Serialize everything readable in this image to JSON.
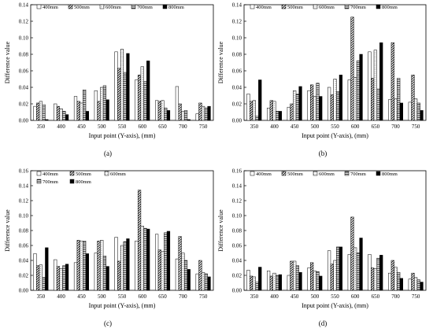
{
  "chart_data": [
    {
      "type": "bar",
      "panel_label": "(a)",
      "xlabel": "Input point (Y-axis), (mm)",
      "ylabel": "Difference value",
      "categories": [
        "350",
        "400",
        "450",
        "500",
        "550",
        "600",
        "650",
        "700",
        "750"
      ],
      "yticks": [
        "0.00",
        "0.02",
        "0.04",
        "0.06",
        "0.08",
        "0.10",
        "0.12",
        "0.14"
      ],
      "ylim": [
        0,
        0.14
      ],
      "legend": {
        "placement": "top-left"
      },
      "series": [
        {
          "name": "400mm",
          "pattern": "white",
          "values": [
            0.017,
            0.02,
            0.029,
            0.036,
            0.083,
            0.049,
            0.024,
            0.041,
            0.008
          ]
        },
        {
          "name": "500mm",
          "pattern": "diag",
          "values": [
            0.021,
            0.017,
            0.023,
            0.023,
            0.063,
            0.055,
            0.023,
            0.02,
            0.021
          ]
        },
        {
          "name": "600mm",
          "pattern": "dots",
          "values": [
            0.023,
            0.014,
            0.021,
            0.04,
            0.086,
            0.065,
            0.024,
            0.011,
            0.017
          ]
        },
        {
          "name": "700mm",
          "pattern": "horiz",
          "values": [
            0.019,
            0.011,
            0.037,
            0.042,
            0.058,
            0.047,
            0.015,
            0.012,
            0.015
          ]
        },
        {
          "name": "800mm",
          "pattern": "black",
          "values": [
            0.001,
            0.007,
            0.011,
            0.025,
            0.081,
            0.072,
            0.012,
            0.001,
            0.017
          ]
        }
      ]
    },
    {
      "type": "bar",
      "panel_label": "(b)",
      "xlabel": "Input point (Y-axis), (mm)",
      "ylabel": "Difference value",
      "categories": [
        "350",
        "400",
        "450",
        "500",
        "550",
        "600",
        "650",
        "700",
        "750"
      ],
      "yticks": [
        "0.00",
        "0.02",
        "0.04",
        "0.06",
        "0.08",
        "0.10",
        "0.12",
        "0.14"
      ],
      "ylim": [
        0,
        0.14
      ],
      "legend": {
        "placement": "top-left"
      },
      "series": [
        {
          "name": "400mm",
          "pattern": "white",
          "values": [
            0.032,
            0.015,
            0.016,
            0.036,
            0.04,
            0.049,
            0.083,
            0.025,
            0.022
          ]
        },
        {
          "name": "500mm",
          "pattern": "diag",
          "values": [
            0.023,
            0.024,
            0.02,
            0.043,
            0.031,
            0.125,
            0.051,
            0.094,
            0.055
          ]
        },
        {
          "name": "600mm",
          "pattern": "dots",
          "values": [
            0.024,
            0.023,
            0.036,
            0.029,
            0.05,
            0.052,
            0.085,
            0.026,
            0.026
          ]
        },
        {
          "name": "700mm",
          "pattern": "horiz",
          "values": [
            0.005,
            0.011,
            0.032,
            0.045,
            0.035,
            0.072,
            0.038,
            0.051,
            0.021
          ]
        },
        {
          "name": "800mm",
          "pattern": "black",
          "values": [
            0.049,
            0.011,
            0.041,
            0.029,
            0.055,
            0.08,
            0.094,
            0.021,
            0.012
          ]
        }
      ]
    },
    {
      "type": "bar",
      "panel_label": "(c)",
      "xlabel": "Input point (Y-axis), (mm)",
      "ylabel": "Difference value",
      "categories": [
        "350",
        "400",
        "450",
        "500",
        "550",
        "600",
        "650",
        "700",
        "750"
      ],
      "yticks": [
        "0.00",
        "0.02",
        "0.04",
        "0.06",
        "0.08",
        "0.10",
        "0.12",
        "0.14",
        "0.16"
      ],
      "ylim": [
        0,
        0.16
      ],
      "legend": {
        "placement": "top-left"
      },
      "series": [
        {
          "name": "400mm",
          "pattern": "white",
          "values": [
            0.049,
            0.041,
            0.037,
            0.05,
            0.071,
            0.066,
            0.075,
            0.042,
            0.022
          ]
        },
        {
          "name": "500mm",
          "pattern": "diag",
          "values": [
            0.033,
            0.032,
            0.067,
            0.066,
            0.039,
            0.134,
            0.054,
            0.072,
            0.04
          ]
        },
        {
          "name": "600mm",
          "pattern": "dots",
          "values": [
            0.034,
            0.029,
            0.066,
            0.067,
            0.06,
            0.086,
            0.052,
            0.05,
            0.024
          ]
        },
        {
          "name": "700mm",
          "pattern": "horiz",
          "values": [
            0.017,
            0.033,
            0.066,
            0.046,
            0.065,
            0.083,
            0.077,
            0.04,
            0.022
          ]
        },
        {
          "name": "800mm",
          "pattern": "black",
          "values": [
            0.057,
            0.035,
            0.049,
            0.032,
            0.069,
            0.082,
            0.079,
            0.028,
            0.018
          ]
        }
      ]
    },
    {
      "type": "bar",
      "panel_label": "(d)",
      "xlabel": "Input point (Y-axis), (mm)",
      "ylabel": "Difference value",
      "categories": [
        "350",
        "400",
        "450",
        "500",
        "550",
        "600",
        "650",
        "700",
        "750"
      ],
      "yticks": [
        "0.00",
        "0.02",
        "0.04",
        "0.06",
        "0.08",
        "0.10",
        "0.12",
        "0.14",
        "0.16"
      ],
      "ylim": [
        0,
        0.16
      ],
      "legend": {
        "placement": "top-left"
      },
      "series": [
        {
          "name": "400mm",
          "pattern": "white",
          "values": [
            0.027,
            0.026,
            0.02,
            0.03,
            0.053,
            0.048,
            0.048,
            0.023,
            0.015
          ]
        },
        {
          "name": "500mm",
          "pattern": "diag",
          "values": [
            0.019,
            0.019,
            0.039,
            0.037,
            0.035,
            0.098,
            0.03,
            0.04,
            0.023
          ]
        },
        {
          "name": "600mm",
          "pattern": "dots",
          "values": [
            0.018,
            0.023,
            0.039,
            0.026,
            0.04,
            0.057,
            0.029,
            0.031,
            0.017
          ]
        },
        {
          "name": "700mm",
          "pattern": "horiz",
          "values": [
            0.011,
            0.02,
            0.033,
            0.025,
            0.058,
            0.05,
            0.043,
            0.024,
            0.014
          ]
        },
        {
          "name": "800mm",
          "pattern": "black",
          "values": [
            0.031,
            0.021,
            0.024,
            0.019,
            0.058,
            0.07,
            0.047,
            0.016,
            0.011
          ]
        }
      ]
    }
  ]
}
